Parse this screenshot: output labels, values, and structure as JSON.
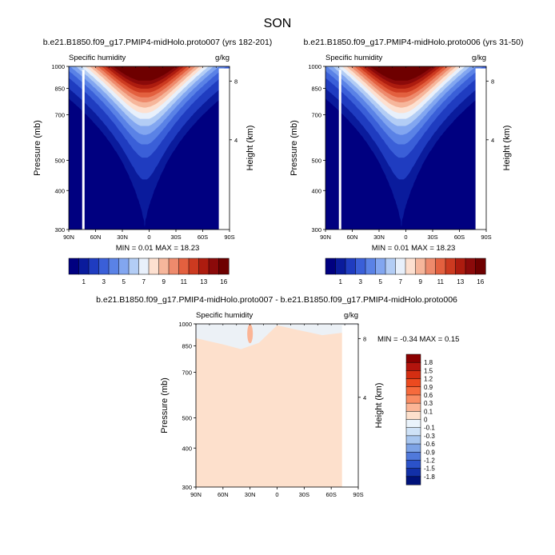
{
  "figure": {
    "title": "SON"
  },
  "ticks": {
    "lat": [
      "90N",
      "60N",
      "30N",
      "0",
      "30S",
      "60S",
      "90S"
    ],
    "pressure": [
      "300",
      "400",
      "500",
      "700",
      "850",
      "1000"
    ],
    "height": [
      "8",
      "4"
    ]
  },
  "chart_data": [
    {
      "type": "heatmap",
      "title": "b.e21.B1850.f09_g17.PMIP4-midHolo.proto007 (yrs 182-201)",
      "variable": "Specific humidity",
      "units": "g/kg",
      "ylabel": "Pressure (mb)",
      "y2label": "Height (km)",
      "stats": "MIN =  0.01  MAX =  18.23",
      "xlim": [
        90,
        -90
      ],
      "ylim": [
        1000,
        300
      ],
      "colorbar": {
        "labels": [
          "1",
          "3",
          "5",
          "7",
          "9",
          "11",
          "13",
          "16"
        ],
        "colors": [
          "#000080",
          "#0a1b9c",
          "#1f3cc0",
          "#3a5fd8",
          "#5a82e6",
          "#82a6f0",
          "#b3cdf5",
          "#e8f0fb",
          "#fde0d0",
          "#f6b69b",
          "#ee8a6c",
          "#e3603f",
          "#cc3a20",
          "#ad1c0f",
          "#8b0a0a",
          "#6e0000"
        ]
      }
    },
    {
      "type": "heatmap",
      "title": "b.e21.B1850.f09_g17.PMIP4-midHolo.proto006 (yrs 31-50)",
      "variable": "Specific humidity",
      "units": "g/kg",
      "ylabel": "Pressure (mb)",
      "y2label": "Height (km)",
      "stats": "MIN =  0.01  MAX =  18.23",
      "xlim": [
        90,
        -90
      ],
      "ylim": [
        1000,
        300
      ],
      "colorbar": {
        "labels": [
          "1",
          "3",
          "5",
          "7",
          "9",
          "11",
          "13",
          "16"
        ],
        "colors": [
          "#000080",
          "#0a1b9c",
          "#1f3cc0",
          "#3a5fd8",
          "#5a82e6",
          "#82a6f0",
          "#b3cdf5",
          "#e8f0fb",
          "#fde0d0",
          "#f6b69b",
          "#ee8a6c",
          "#e3603f",
          "#cc3a20",
          "#ad1c0f",
          "#8b0a0a",
          "#6e0000"
        ]
      }
    },
    {
      "type": "heatmap",
      "title": "b.e21.B1850.f09_g17.PMIP4-midHolo.proto007 - b.e21.B1850.f09_g17.PMIP4-midHolo.proto006",
      "variable": "Specific humidity",
      "units": "g/kg",
      "ylabel": "Pressure (mb)",
      "y2label": "Height (km)",
      "stats": "MIN = -0.34  MAX =  0.15",
      "xlim": [
        90,
        -90
      ],
      "ylim": [
        1000,
        300
      ],
      "colorbar": {
        "labels": [
          "1.8",
          "1.5",
          "1.2",
          "0.9",
          "0.6",
          "0.3",
          "0.1",
          "0",
          "-0.1",
          "-0.3",
          "-0.6",
          "-0.9",
          "-1.2",
          "-1.5",
          "-1.8"
        ],
        "colors": [
          "#8b0000",
          "#b3140d",
          "#d42e12",
          "#ec4a1f",
          "#f66a3c",
          "#f98c63",
          "#fbb596",
          "#fde0cc",
          "#eaf3fb",
          "#cfe2f7",
          "#a8c6ef",
          "#7da3e6",
          "#5079db",
          "#2b52c9",
          "#1230a8",
          "#00127a"
        ]
      }
    }
  ]
}
